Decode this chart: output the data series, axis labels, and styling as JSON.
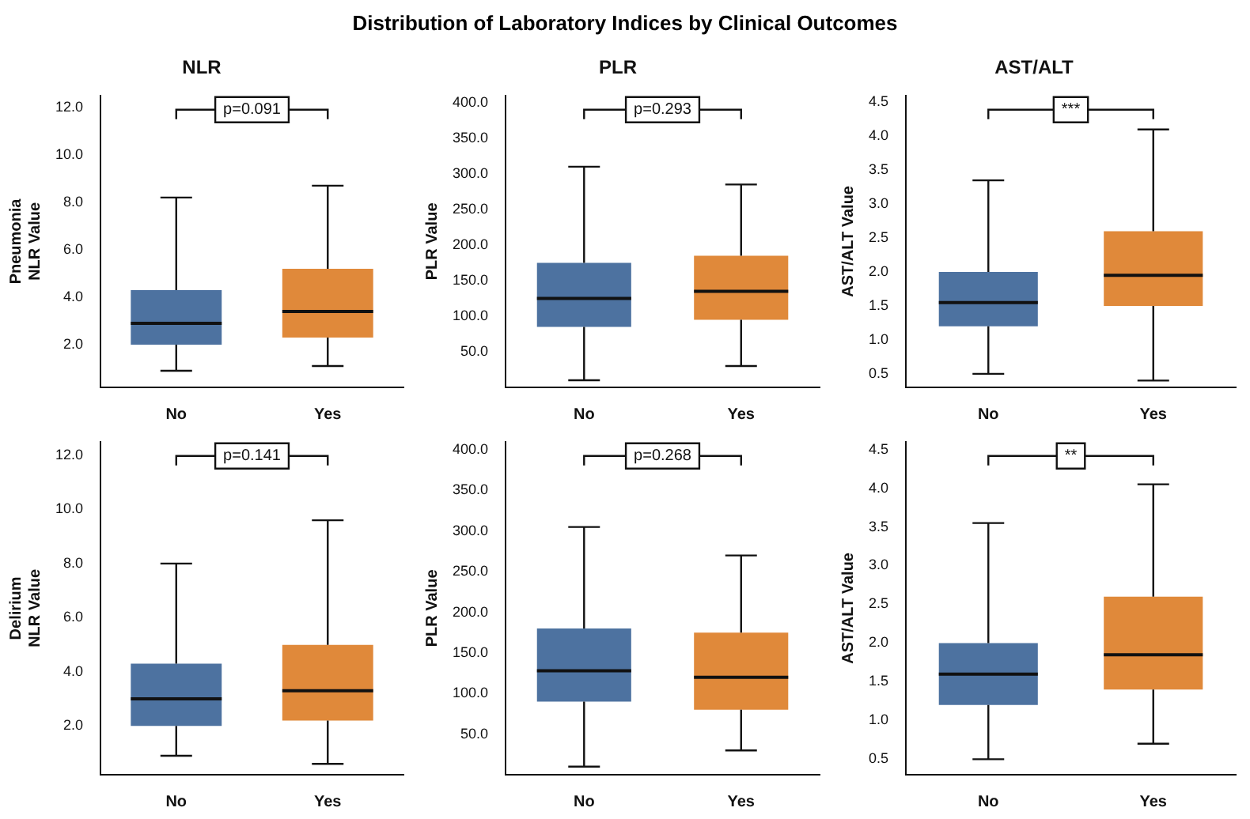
{
  "chart_data": [
    {
      "type": "box",
      "title": "NLR",
      "ylabel": "Pneumonia\nNLR Value",
      "annotations": [
        "Distribution of Laboratory Indices by Clinical Outcomes",
        "p=0.091"
      ],
      "categories": [
        "No",
        "Yes"
      ],
      "colors": [
        "#4d72a0",
        "#e0893a"
      ],
      "boxes": [
        {
          "low": 0.9,
          "q1": 2.0,
          "median": 2.9,
          "q3": 4.3,
          "high": 8.2
        },
        {
          "low": 1.1,
          "q1": 2.3,
          "median": 3.4,
          "q3": 5.2,
          "high": 8.7
        }
      ],
      "ylim": [
        0.2,
        12.5
      ],
      "yticks": [
        {
          "value": 2,
          "label": "2.0"
        },
        {
          "value": 4,
          "label": "4.0"
        },
        {
          "value": 6,
          "label": "6.0"
        },
        {
          "value": 8,
          "label": "8.0"
        },
        {
          "value": 10,
          "label": "10.0"
        },
        {
          "value": 12,
          "label": "12.0"
        }
      ]
    },
    {
      "type": "box",
      "title": "PLR",
      "ylabel": "PLR Value",
      "annotations": [
        "p=0.293"
      ],
      "categories": [
        "No",
        "Yes"
      ],
      "colors": [
        "#4d72a0",
        "#e0893a"
      ],
      "boxes": [
        {
          "low": 10,
          "q1": 85,
          "median": 125,
          "q3": 175,
          "high": 310
        },
        {
          "low": 30,
          "q1": 95,
          "median": 135,
          "q3": 185,
          "high": 285
        }
      ],
      "ylim": [
        0,
        410
      ],
      "yticks": [
        {
          "value": 50,
          "label": "50.0"
        },
        {
          "value": 100,
          "label": "100.0"
        },
        {
          "value": 150,
          "label": "150.0"
        },
        {
          "value": 200,
          "label": "200.0"
        },
        {
          "value": 250,
          "label": "250.0"
        },
        {
          "value": 300,
          "label": "300.0"
        },
        {
          "value": 350,
          "label": "350.0"
        },
        {
          "value": 400,
          "label": "400.0"
        }
      ]
    },
    {
      "type": "box",
      "title": "AST/ALT",
      "ylabel": "AST/ALT Value",
      "annotations": [
        "***"
      ],
      "categories": [
        "No",
        "Yes"
      ],
      "colors": [
        "#4d72a0",
        "#e0893a"
      ],
      "boxes": [
        {
          "low": 0.5,
          "q1": 1.2,
          "median": 1.55,
          "q3": 2.0,
          "high": 3.35
        },
        {
          "low": 0.4,
          "q1": 1.5,
          "median": 1.95,
          "q3": 2.6,
          "high": 4.1
        }
      ],
      "ylim": [
        0.3,
        4.6
      ],
      "yticks": [
        {
          "value": 0.5,
          "label": "0.5"
        },
        {
          "value": 1,
          "label": "1.0"
        },
        {
          "value": 1.5,
          "label": "1.5"
        },
        {
          "value": 2,
          "label": "2.0"
        },
        {
          "value": 2.5,
          "label": "2.5"
        },
        {
          "value": 3,
          "label": "3.0"
        },
        {
          "value": 3.5,
          "label": "3.5"
        },
        {
          "value": 4,
          "label": "4.0"
        },
        {
          "value": 4.5,
          "label": "4.5"
        }
      ]
    },
    {
      "type": "box",
      "ylabel": "Delirium\nNLR Value",
      "annotations": [
        "p=0.141"
      ],
      "categories": [
        "No",
        "Yes"
      ],
      "colors": [
        "#4d72a0",
        "#e0893a"
      ],
      "boxes": [
        {
          "low": 0.9,
          "q1": 2.0,
          "median": 3.0,
          "q3": 4.3,
          "high": 8.0
        },
        {
          "low": 0.6,
          "q1": 2.2,
          "median": 3.3,
          "q3": 5.0,
          "high": 9.6
        }
      ],
      "ylim": [
        0.2,
        12.5
      ],
      "yticks": [
        {
          "value": 2,
          "label": "2.0"
        },
        {
          "value": 4,
          "label": "4.0"
        },
        {
          "value": 6,
          "label": "6.0"
        },
        {
          "value": 8,
          "label": "8.0"
        },
        {
          "value": 10,
          "label": "10.0"
        },
        {
          "value": 12,
          "label": "12.0"
        }
      ]
    },
    {
      "type": "box",
      "ylabel": "PLR Value",
      "annotations": [
        "p=0.268"
      ],
      "categories": [
        "No",
        "Yes"
      ],
      "colors": [
        "#4d72a0",
        "#e0893a"
      ],
      "boxes": [
        {
          "low": 10,
          "q1": 90,
          "median": 128,
          "q3": 180,
          "high": 305
        },
        {
          "low": 30,
          "q1": 80,
          "median": 120,
          "q3": 175,
          "high": 270
        }
      ],
      "ylim": [
        0,
        410
      ],
      "yticks": [
        {
          "value": 50,
          "label": "50.0"
        },
        {
          "value": 100,
          "label": "100.0"
        },
        {
          "value": 150,
          "label": "150.0"
        },
        {
          "value": 200,
          "label": "200.0"
        },
        {
          "value": 250,
          "label": "250.0"
        },
        {
          "value": 300,
          "label": "300.0"
        },
        {
          "value": 350,
          "label": "350.0"
        },
        {
          "value": 400,
          "label": "400.0"
        }
      ]
    },
    {
      "type": "box",
      "ylabel": "AST/ALT Value",
      "annotations": [
        "**"
      ],
      "categories": [
        "No",
        "Yes"
      ],
      "colors": [
        "#4d72a0",
        "#e0893a"
      ],
      "boxes": [
        {
          "low": 0.5,
          "q1": 1.2,
          "median": 1.6,
          "q3": 2.0,
          "high": 3.55
        },
        {
          "low": 0.7,
          "q1": 1.4,
          "median": 1.85,
          "q3": 2.6,
          "high": 4.05
        }
      ],
      "ylim": [
        0.3,
        4.6
      ],
      "yticks": [
        {
          "value": 0.5,
          "label": "0.5"
        },
        {
          "value": 1,
          "label": "1.0"
        },
        {
          "value": 1.5,
          "label": "1.5"
        },
        {
          "value": 2,
          "label": "2.0"
        },
        {
          "value": 2.5,
          "label": "2.5"
        },
        {
          "value": 3,
          "label": "3.0"
        },
        {
          "value": 3.5,
          "label": "3.5"
        },
        {
          "value": 4,
          "label": "4.0"
        },
        {
          "value": 4.5,
          "label": "4.5"
        }
      ]
    }
  ]
}
